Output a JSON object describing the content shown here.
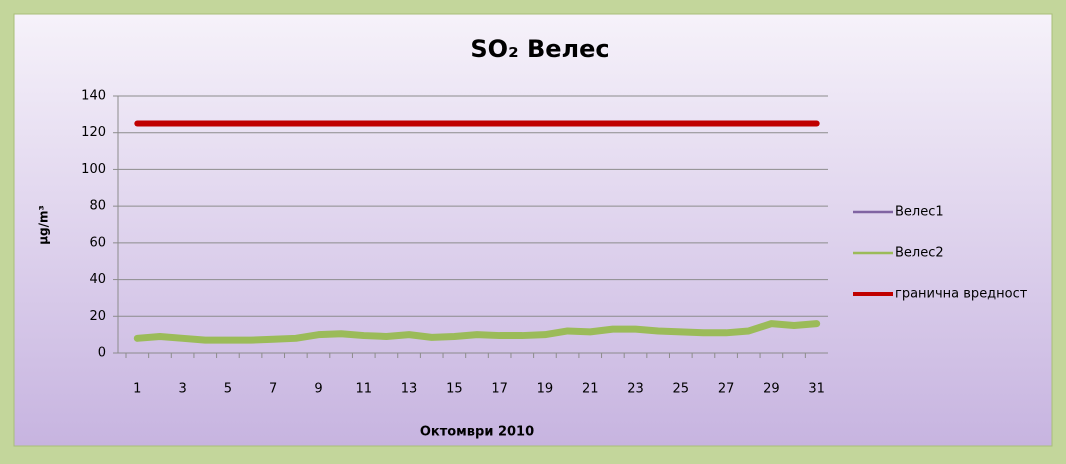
{
  "chart_data": {
    "type": "line",
    "title": "SO₂ Велес",
    "y_label": "μg/m³",
    "x_label": "Октомври 2010",
    "categories": [
      "1",
      null,
      "3",
      null,
      "5",
      null,
      "7",
      null,
      "9",
      null,
      "11",
      null,
      "13",
      null,
      "15",
      null,
      "17",
      null,
      "19",
      null,
      "21",
      null,
      "23",
      null,
      "25",
      null,
      "27",
      null,
      "29",
      null,
      "31"
    ],
    "series": [
      {
        "name": "Велес1",
        "color": "#8064a2",
        "values": [
          null,
          null,
          null,
          null,
          null,
          null,
          null,
          null,
          null,
          null,
          null,
          null,
          null,
          null,
          null,
          null,
          null,
          null,
          null,
          null,
          null,
          null,
          null,
          null,
          null,
          null,
          null,
          null,
          null,
          null,
          null
        ]
      },
      {
        "name": "Велес2",
        "color": "#9bbb59",
        "values": [
          8,
          9,
          8,
          7,
          7,
          7,
          7.5,
          8,
          10,
          10.5,
          9.5,
          9,
          10,
          8.5,
          9,
          10,
          9.5,
          9.5,
          10,
          12,
          11.5,
          13,
          13,
          12,
          11.5,
          11,
          11,
          12,
          16,
          15,
          16
        ]
      },
      {
        "name": "гранична вредност",
        "color": "#c00000",
        "values": [
          125,
          125,
          125,
          125,
          125,
          125,
          125,
          125,
          125,
          125,
          125,
          125,
          125,
          125,
          125,
          125,
          125,
          125,
          125,
          125,
          125,
          125,
          125,
          125,
          125,
          125,
          125,
          125,
          125,
          125,
          125
        ]
      }
    ],
    "ylim": [
      0,
      140
    ],
    "yticks": [
      0,
      20,
      40,
      60,
      80,
      100,
      120,
      140
    ],
    "grid": true,
    "legend": "right"
  }
}
